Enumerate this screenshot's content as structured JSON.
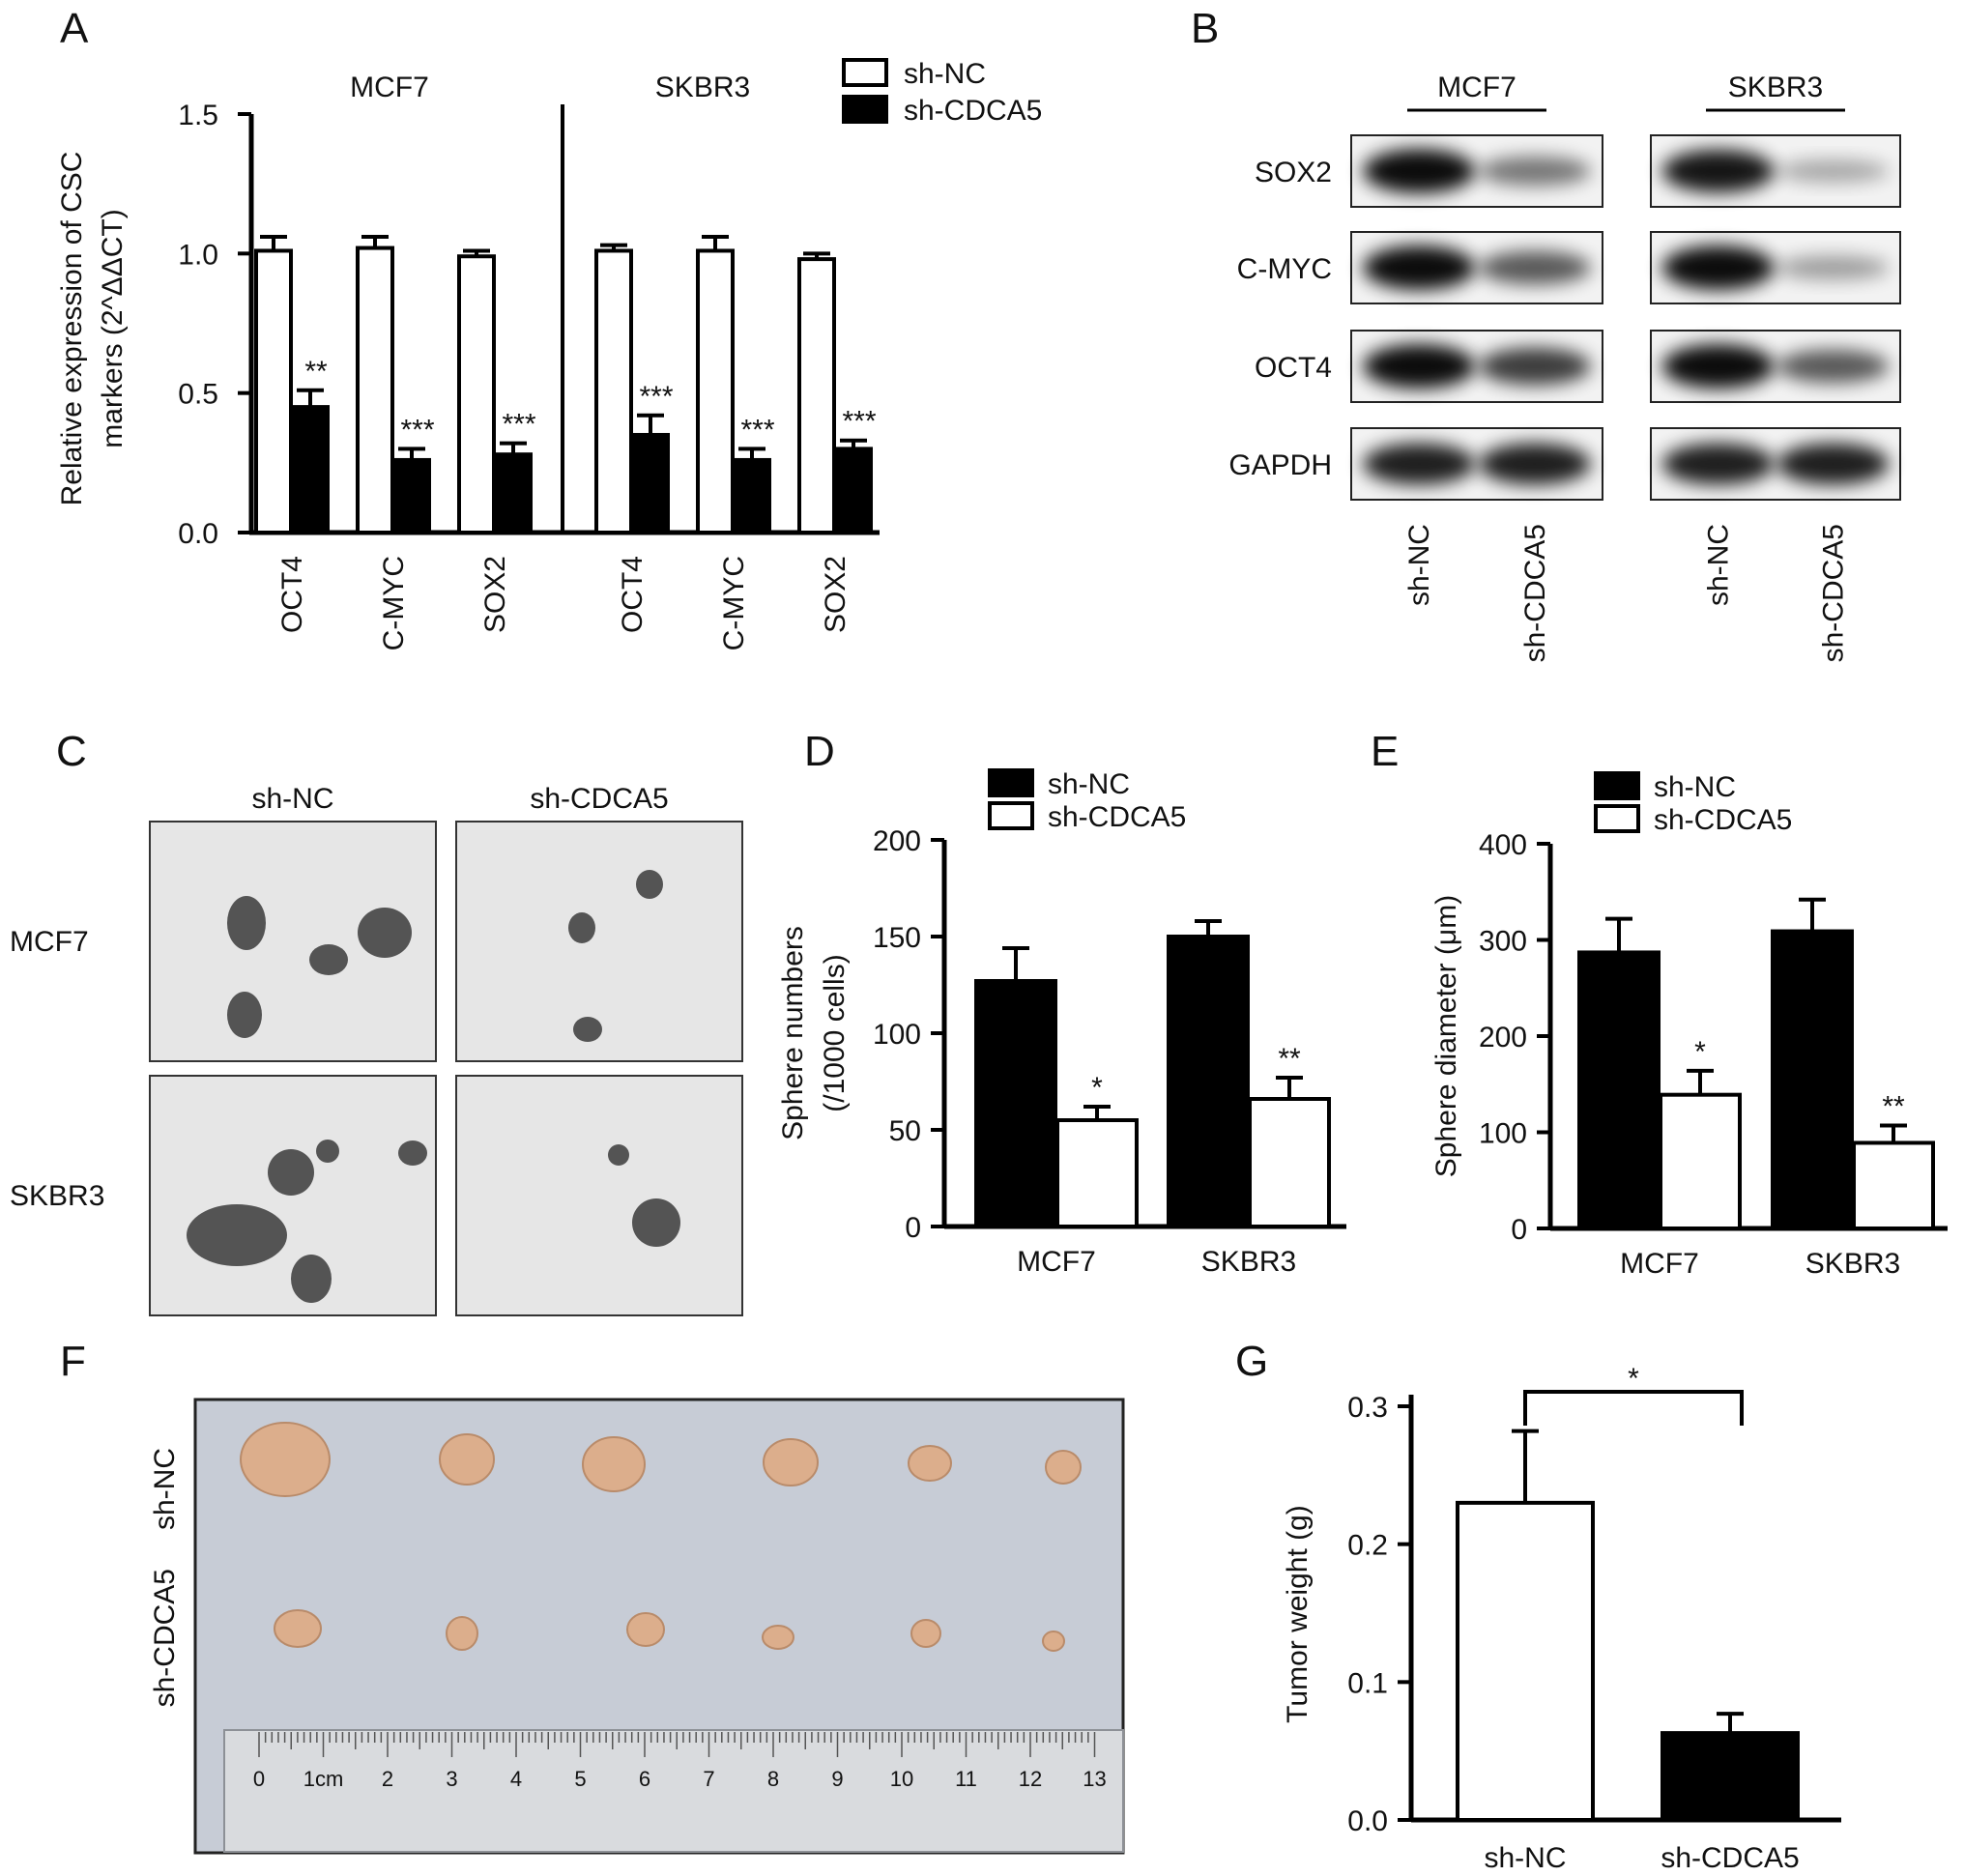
{
  "figure": {
    "panel_letters": [
      "A",
      "B",
      "C",
      "D",
      "E",
      "F",
      "G"
    ]
  },
  "legend_labels": {
    "nc": "sh-NC",
    "cdca5": "sh-CDCA5"
  },
  "panel_a": {
    "ylabel_line1": "Relative expression of CSC",
    "ylabel_line2": "markers (2^ΔΔCT)"
  },
  "panel_b": {
    "groups": [
      "MCF7",
      "SKBR3"
    ],
    "proteins": [
      "SOX2",
      "C-MYC",
      "OCT4",
      "GAPDH"
    ],
    "lanes": [
      "sh-NC",
      "sh-CDCA5"
    ],
    "band_intensity": {
      "MCF7": {
        "SOX2": [
          1.0,
          0.45
        ],
        "C-MYC": [
          1.0,
          0.6
        ],
        "OCT4": [
          1.0,
          0.75
        ],
        "GAPDH": [
          0.9,
          0.9
        ]
      },
      "SKBR3": {
        "SOX2": [
          0.95,
          0.2
        ],
        "C-MYC": [
          1.0,
          0.25
        ],
        "OCT4": [
          1.0,
          0.6
        ],
        "GAPDH": [
          0.9,
          0.9
        ]
      }
    }
  },
  "panel_c": {
    "columns": [
      "sh-NC",
      "sh-CDCA5"
    ],
    "rows": [
      "MCF7",
      "SKBR3"
    ]
  },
  "panel_f": {
    "rows": [
      "sh-NC",
      "sh-CDCA5"
    ],
    "ruler_marks": [
      "0",
      "1cm",
      "2",
      "3",
      "4",
      "5",
      "6",
      "7",
      "8",
      "9",
      "10",
      "11",
      "12",
      "13"
    ]
  },
  "chart_data": [
    {
      "panel": "A",
      "type": "bar",
      "groups": [
        "MCF7",
        "SKBR3"
      ],
      "categories": [
        "OCT4",
        "C-MYC",
        "SOX2"
      ],
      "ylabel": "Relative expression of CSC markers (2^ΔΔCT)",
      "ylim": [
        0,
        1.5
      ],
      "yticks": [
        "0.0",
        "0.5",
        "1.0",
        "1.5"
      ],
      "legend": "top-right",
      "series": [
        {
          "name": "sh-NC",
          "values": {
            "MCF7": [
              1.01,
              1.02,
              0.99
            ],
            "SKBR3": [
              1.01,
              1.01,
              0.98
            ]
          },
          "errors": {
            "MCF7": [
              0.05,
              0.04,
              0.02
            ],
            "SKBR3": [
              0.02,
              0.05,
              0.02
            ]
          }
        },
        {
          "name": "sh-CDCA5",
          "values": {
            "MCF7": [
              0.45,
              0.26,
              0.28
            ],
            "SKBR3": [
              0.35,
              0.26,
              0.3
            ]
          },
          "errors": {
            "MCF7": [
              0.06,
              0.04,
              0.04
            ],
            "SKBR3": [
              0.07,
              0.04,
              0.03
            ]
          }
        }
      ],
      "significance": {
        "MCF7": [
          "**",
          "***",
          "***"
        ],
        "SKBR3": [
          "***",
          "***",
          "***"
        ]
      }
    },
    {
      "panel": "D",
      "type": "bar",
      "categories": [
        "MCF7",
        "SKBR3"
      ],
      "ylabel_line1": "Sphere numbers",
      "ylabel_line2": "(/1000 cells)",
      "ylim": [
        0,
        200
      ],
      "yticks": [
        "0",
        "50",
        "100",
        "150",
        "200"
      ],
      "legend": "top",
      "series": [
        {
          "name": "sh-NC",
          "values": [
            127,
            150
          ],
          "errors": [
            17,
            8
          ]
        },
        {
          "name": "sh-CDCA5",
          "values": [
            55,
            66
          ],
          "errors": [
            7,
            11
          ]
        }
      ],
      "significance": [
        "*",
        "**"
      ]
    },
    {
      "panel": "E",
      "type": "bar",
      "categories": [
        "MCF7",
        "SKBR3"
      ],
      "ylabel": "Sphere diameter (μm)",
      "ylim": [
        0,
        400
      ],
      "yticks": [
        "0",
        "100",
        "200",
        "300",
        "400"
      ],
      "legend": "top",
      "series": [
        {
          "name": "sh-NC",
          "values": [
            287,
            309
          ],
          "errors": [
            35,
            33
          ]
        },
        {
          "name": "sh-CDCA5",
          "values": [
            139,
            89
          ],
          "errors": [
            25,
            18
          ]
        }
      ],
      "significance": [
        "*",
        "**"
      ]
    },
    {
      "panel": "G",
      "type": "bar",
      "categories": [
        "sh-NC",
        "sh-CDCA5"
      ],
      "ylabel": "Tumor weight (g)",
      "ylim": [
        0,
        0.3
      ],
      "yticks": [
        "0.0",
        "0.1",
        "0.2",
        "0.3"
      ],
      "values": [
        0.23,
        0.063
      ],
      "errors": [
        0.052,
        0.014
      ],
      "fills": [
        "#ffffff",
        "#000000"
      ],
      "significance": "*"
    }
  ]
}
